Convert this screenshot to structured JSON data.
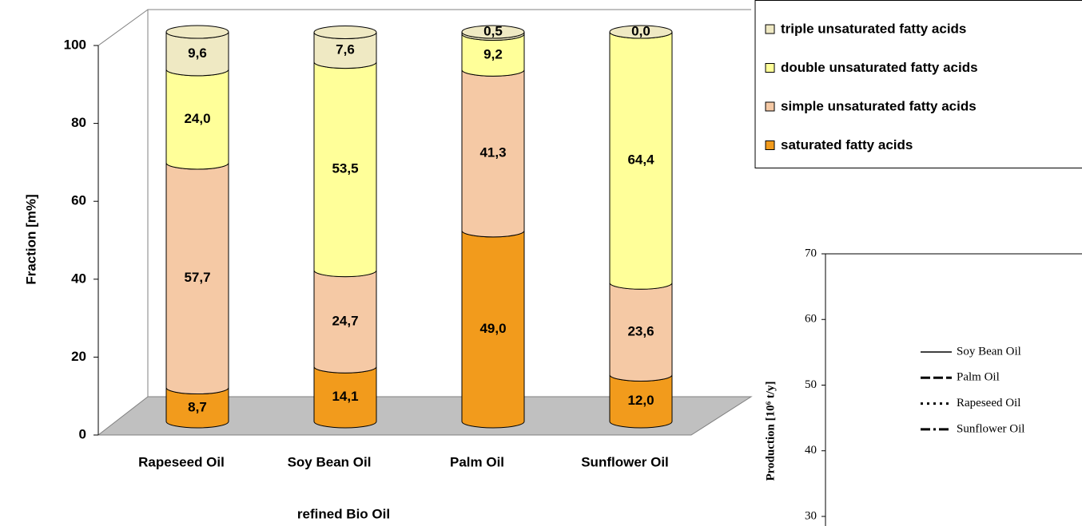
{
  "chart_data": [
    {
      "type": "bar",
      "stacked": true,
      "y_label": "Fraction [m%]",
      "x_label": "refined Bio Oil",
      "categories": [
        "Rapeseed Oil",
        "Soy Bean Oil",
        "Palm Oil",
        "Sunflower Oil"
      ],
      "series": [
        {
          "name": "saturated fatty acids",
          "color": "#f29b1c",
          "values": [
            8.7,
            14.1,
            49.0,
            12.0
          ],
          "value_labels": [
            "8,7",
            "14,1",
            "49,0",
            "12,0"
          ]
        },
        {
          "name": "simple unsaturated fatty acids",
          "color": "#f5c9a5",
          "values": [
            57.7,
            24.7,
            41.3,
            23.6
          ],
          "value_labels": [
            "57,7",
            "24,7",
            "41,3",
            "23,6"
          ]
        },
        {
          "name": "double unsaturated fatty acids",
          "color": "#ffff99",
          "values": [
            24.0,
            53.5,
            9.2,
            64.4
          ],
          "value_labels": [
            "24,0",
            "53,5",
            "9,2",
            "64,4"
          ]
        },
        {
          "name": "triple unsaturated fatty acids",
          "color": "#efe9c3",
          "values": [
            9.6,
            7.6,
            0.5,
            0.0
          ],
          "value_labels": [
            "9,6",
            "7,6",
            "0,5",
            "0,0"
          ]
        }
      ],
      "ylim": [
        0,
        100
      ],
      "yticks": [
        0,
        20,
        40,
        60,
        80,
        100
      ]
    },
    {
      "type": "line",
      "y_label": "Production [10⁶ t/y]",
      "series": [
        {
          "name": "Soy Bean Oil",
          "dash": "solid"
        },
        {
          "name": "Palm Oil",
          "dash": "dash"
        },
        {
          "name": "Rapeseed Oil",
          "dash": "dot"
        },
        {
          "name": "Sunflower Oil",
          "dash": "dashdot"
        }
      ],
      "ylim": [
        30,
        70
      ],
      "yticks": [
        30,
        40,
        50,
        60,
        70
      ]
    }
  ]
}
